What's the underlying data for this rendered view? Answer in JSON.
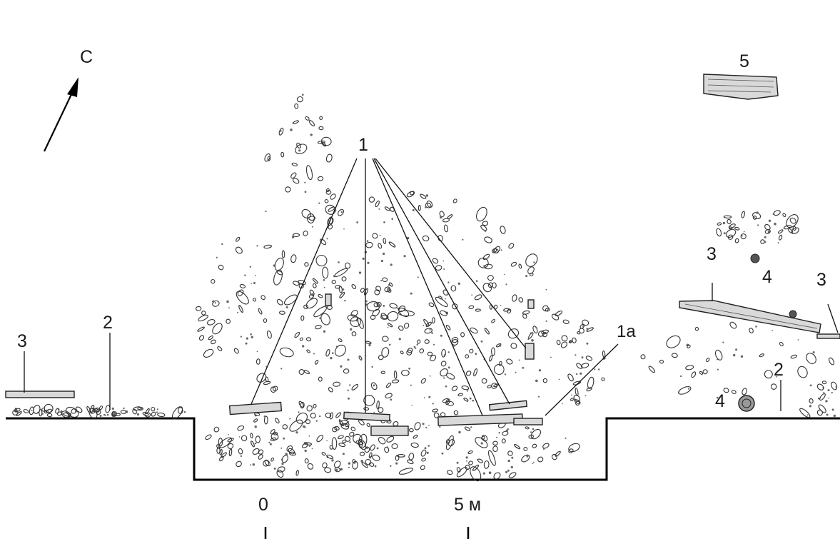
{
  "north_arrow": {
    "label": "С"
  },
  "labels": {
    "feature_1": "1",
    "feature_1a": "1а",
    "feature_2_left": "2",
    "feature_2_right": "2",
    "feature_3_left": "3",
    "feature_3_mid": "3",
    "feature_3_right": "3",
    "feature_4_upper": "4",
    "feature_4_lower": "4",
    "feature_5": "5"
  },
  "scale": {
    "tick_0": "0",
    "tick_5": "5 м"
  }
}
